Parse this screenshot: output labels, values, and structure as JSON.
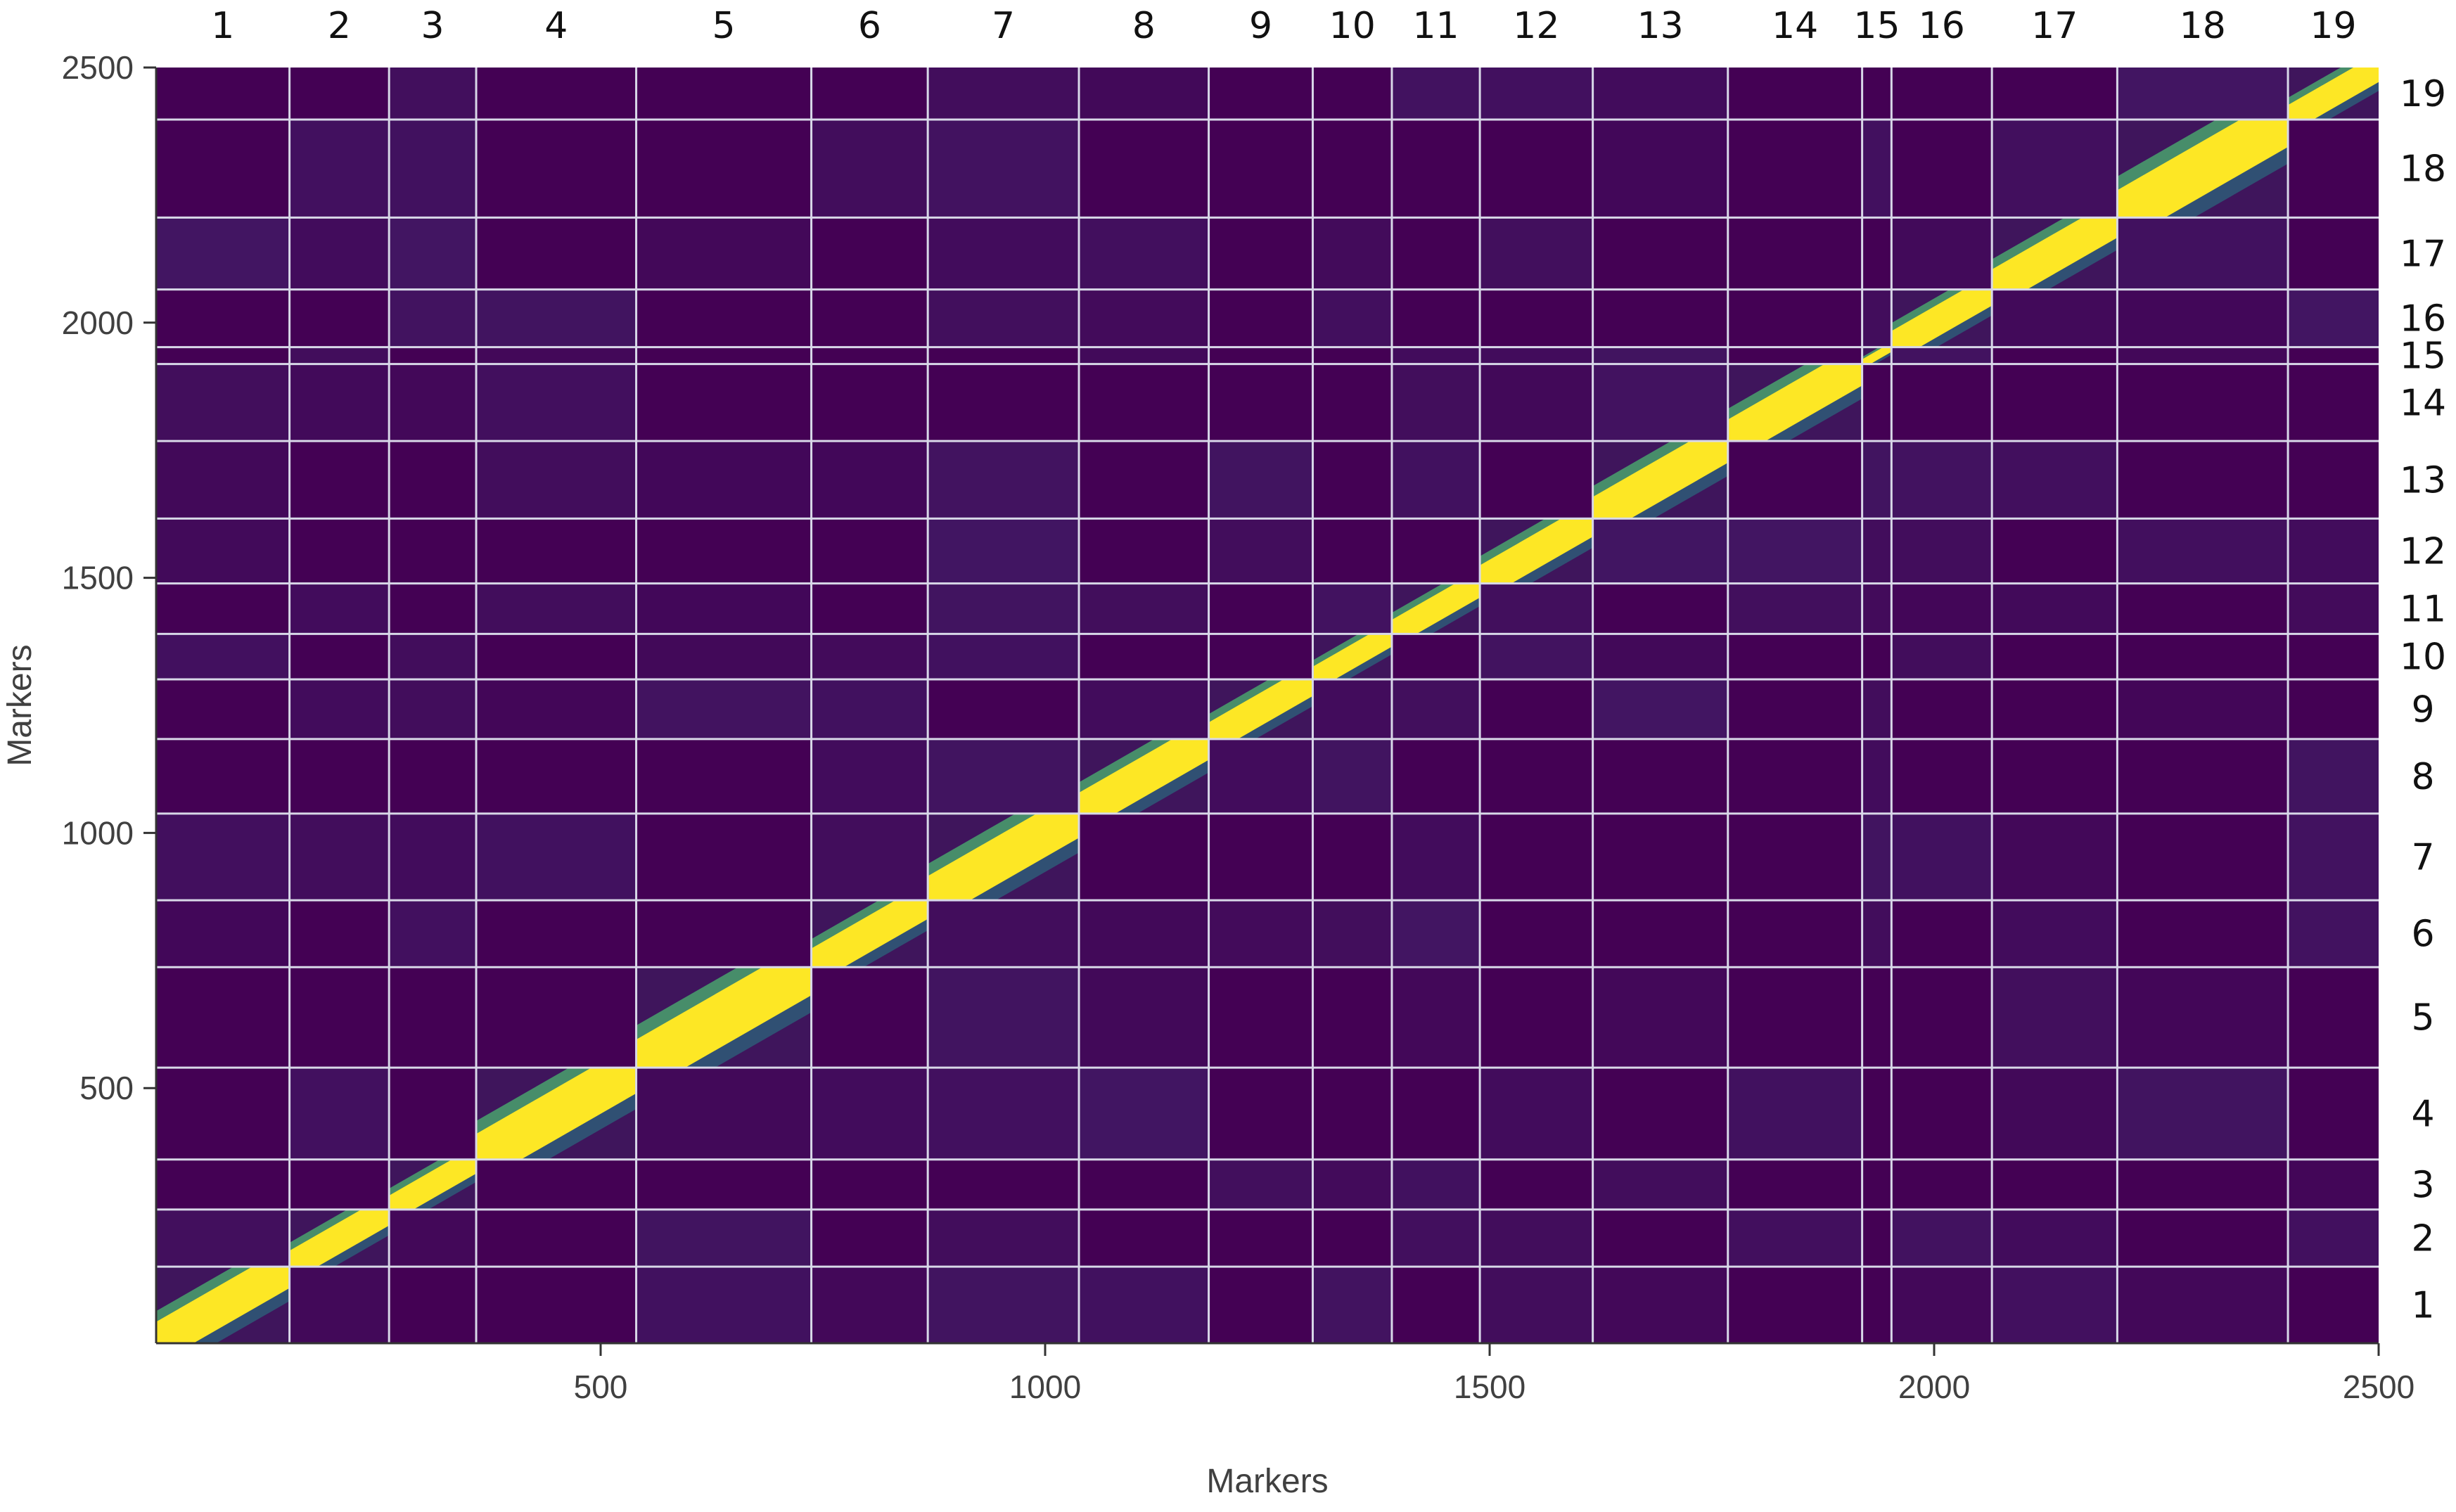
{
  "chart_data": {
    "type": "heatmap",
    "title": "",
    "xlabel": "Markers",
    "ylabel": "Markers",
    "xlim": [
      0,
      2500
    ],
    "ylim": [
      0,
      2500
    ],
    "x_ticks": [
      500,
      1000,
      1500,
      2000,
      2500
    ],
    "y_ticks": [
      500,
      1000,
      1500,
      2000,
      2500
    ],
    "x_tick_labels": [
      "500",
      "1000",
      "1500",
      "2000",
      "2500"
    ],
    "y_tick_labels": [
      "500",
      "1000",
      "1500",
      "2000",
      "2500"
    ],
    "chromosome_boundaries": [
      0,
      150,
      262,
      360,
      540,
      737,
      868,
      1038,
      1184,
      1301,
      1390,
      1489,
      1616,
      1768,
      1919,
      1952,
      2065,
      2206,
      2398,
      2500
    ],
    "chromosome_labels": [
      "1",
      "2",
      "3",
      "4",
      "5",
      "6",
      "7",
      "8",
      "9",
      "10",
      "11",
      "12",
      "13",
      "14",
      "15",
      "16",
      "17",
      "18",
      "19"
    ],
    "colors": {
      "background": "#440154",
      "low_mid": "#3b528b",
      "mid": "#21918c",
      "high_mid": "#5ec962",
      "high": "#fde725",
      "grid": "#d8d8e8"
    },
    "grid": true,
    "legend": "none"
  }
}
